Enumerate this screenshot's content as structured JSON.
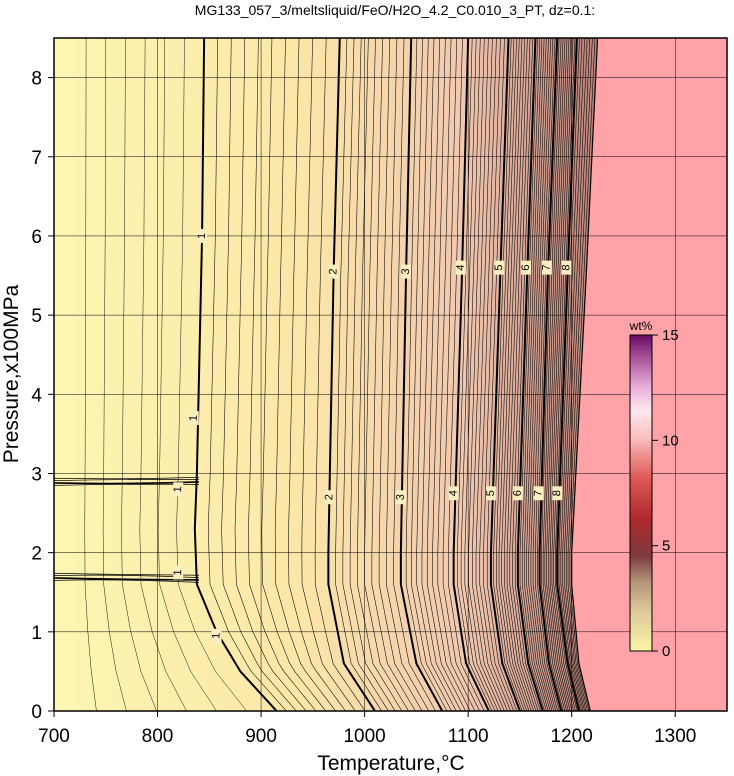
{
  "chart_data": {
    "type": "contour",
    "title": "MG133_057_3/meltsliquid/FeO/H2O_4.2_C0.010_3_PT, dz=0.1:",
    "xlabel": "Temperature,°C",
    "ylabel": "Pressure,x100MPa",
    "xlim": [
      700,
      1350
    ],
    "ylim": [
      0,
      8.5
    ],
    "x_ticks": [
      700,
      800,
      900,
      1000,
      1100,
      1200,
      1300
    ],
    "y_ticks": [
      0,
      1,
      2,
      3,
      4,
      5,
      6,
      7,
      8
    ],
    "grid": true,
    "colorbar": {
      "unit": "wt%",
      "range": [
        0,
        15
      ],
      "ticks": [
        0,
        5,
        10,
        15
      ]
    },
    "contour_interval": 0.1,
    "labeled_contours": [
      {
        "level": "1",
        "label_points": [
          [
            843,
            6.0
          ],
          [
            835,
            3.7
          ],
          [
            820,
            2.8
          ],
          [
            820,
            1.75
          ],
          [
            857,
            0.95
          ]
        ],
        "points": [
          [
            845,
            8.5
          ],
          [
            843,
            6.0
          ],
          [
            838,
            3.0
          ],
          [
            836,
            2.3
          ],
          [
            838,
            1.6
          ],
          [
            857,
            1.0
          ],
          [
            880,
            0.5
          ],
          [
            915,
            0.0
          ]
        ]
      },
      {
        "level": "2",
        "label_points": [
          [
            970,
            5.55
          ],
          [
            966,
            2.7
          ]
        ],
        "points": [
          [
            976,
            8.5
          ],
          [
            970,
            5.5
          ],
          [
            965,
            2.0
          ],
          [
            965,
            1.6
          ],
          [
            980,
            0.6
          ],
          [
            1010,
            0.0
          ]
        ]
      },
      {
        "level": "3",
        "label_points": [
          [
            1040,
            5.55
          ],
          [
            1035,
            2.7
          ]
        ],
        "points": [
          [
            1045,
            8.5
          ],
          [
            1040,
            5.5
          ],
          [
            1035,
            2.0
          ],
          [
            1035,
            1.6
          ],
          [
            1050,
            0.6
          ],
          [
            1075,
            0.0
          ]
        ]
      },
      {
        "level": "4",
        "label_points": [
          [
            1093,
            5.6
          ],
          [
            1086,
            2.75
          ]
        ],
        "points": [
          [
            1100,
            8.5
          ],
          [
            1094,
            5.5
          ],
          [
            1086,
            2.0
          ],
          [
            1086,
            1.6
          ],
          [
            1098,
            0.6
          ],
          [
            1120,
            0.0
          ]
        ]
      },
      {
        "level": "5",
        "label_points": [
          [
            1130,
            5.6
          ],
          [
            1122,
            2.75
          ]
        ],
        "points": [
          [
            1139,
            8.5
          ],
          [
            1131,
            5.5
          ],
          [
            1122,
            2.0
          ],
          [
            1122,
            1.6
          ],
          [
            1133,
            0.6
          ],
          [
            1150,
            0.0
          ]
        ]
      },
      {
        "level": "6",
        "label_points": [
          [
            1156,
            5.6
          ],
          [
            1148,
            2.75
          ]
        ],
        "points": [
          [
            1165,
            8.5
          ],
          [
            1157,
            5.5
          ],
          [
            1148,
            2.0
          ],
          [
            1148,
            1.6
          ],
          [
            1158,
            0.6
          ],
          [
            1172,
            0.0
          ]
        ]
      },
      {
        "level": "7",
        "label_points": [
          [
            1176,
            5.6
          ],
          [
            1168,
            2.75
          ]
        ],
        "points": [
          [
            1186,
            8.5
          ],
          [
            1177,
            5.5
          ],
          [
            1169,
            2.0
          ],
          [
            1169,
            1.6
          ],
          [
            1178,
            0.6
          ],
          [
            1190,
            0.0
          ]
        ]
      },
      {
        "level": "8",
        "label_points": [
          [
            1195,
            5.6
          ],
          [
            1186,
            2.75
          ]
        ],
        "points": [
          [
            1205,
            8.5
          ],
          [
            1196,
            5.5
          ],
          [
            1186,
            2.0
          ],
          [
            1186,
            1.6
          ],
          [
            1196,
            0.6
          ],
          [
            1207,
            0.0
          ]
        ]
      }
    ],
    "liquidus_boundary": [
      [
        1225,
        8.5
      ],
      [
        1214,
        5.5
      ],
      [
        1200,
        2.0
      ],
      [
        1200,
        1.6
      ],
      [
        1207,
        0.6
      ],
      [
        1218,
        0.0
      ]
    ],
    "colors": {
      "low": "#fdf6b3",
      "mid": "#f1c8b0",
      "high": "#9b3a55",
      "outside": "#ffa3a8"
    }
  }
}
